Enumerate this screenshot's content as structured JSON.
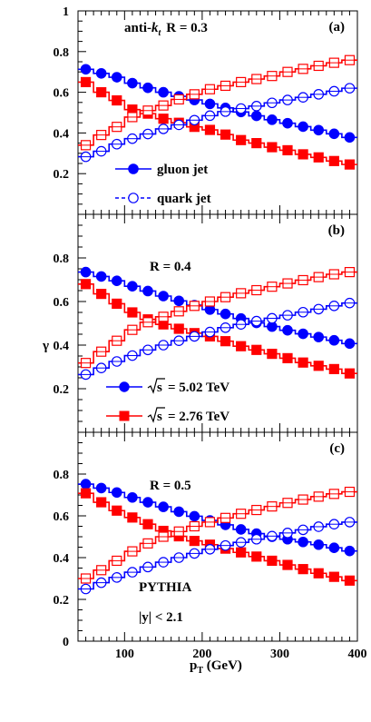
{
  "chart_data": [
    {
      "type": "line",
      "panel_label": "(a)",
      "annotation": "R = 0.3",
      "annotation_prefix": "anti-",
      "annotation_k": "k",
      "annotation_sub": "t",
      "ylim": [
        0,
        1
      ],
      "yticks": [
        "0.2",
        "0.4",
        "0.6",
        "0.8",
        "1"
      ],
      "legend": [
        {
          "label": "gluon jet",
          "marker": "filled-circle"
        },
        {
          "label": "quark jet",
          "marker": "open-circle"
        }
      ],
      "series": [
        {
          "energy": "5.02 TeV",
          "jet": "gluon",
          "color": "#0000ff",
          "filled": true,
          "shape": "circle",
          "x": [
            50,
            70,
            90,
            110,
            130,
            150,
            170,
            190,
            210,
            230,
            250,
            270,
            290,
            310,
            330,
            350,
            370,
            390
          ],
          "values": [
            0.713,
            0.693,
            0.674,
            0.645,
            0.622,
            0.6,
            0.58,
            0.562,
            0.543,
            0.523,
            0.503,
            0.484,
            0.465,
            0.448,
            0.431,
            0.414,
            0.396,
            0.378
          ]
        },
        {
          "energy": "2.76 TeV",
          "jet": "gluon",
          "color": "#ff0000",
          "filled": true,
          "shape": "square",
          "x": [
            50,
            70,
            90,
            110,
            130,
            150,
            170,
            190,
            210,
            230,
            250,
            270,
            290,
            310,
            330,
            350,
            370,
            390
          ],
          "values": [
            0.65,
            0.6,
            0.56,
            0.515,
            0.495,
            0.47,
            0.45,
            0.43,
            0.415,
            0.392,
            0.365,
            0.35,
            0.33,
            0.315,
            0.295,
            0.28,
            0.262,
            0.245
          ]
        },
        {
          "energy": "5.02 TeV",
          "jet": "quark",
          "color": "#0000ff",
          "filled": false,
          "shape": "circle",
          "x": [
            50,
            70,
            90,
            110,
            130,
            150,
            170,
            190,
            210,
            230,
            250,
            270,
            290,
            310,
            330,
            350,
            370,
            390
          ],
          "values": [
            0.283,
            0.31,
            0.345,
            0.372,
            0.395,
            0.42,
            0.44,
            0.463,
            0.485,
            0.505,
            0.52,
            0.532,
            0.548,
            0.562,
            0.575,
            0.59,
            0.605,
            0.62
          ]
        },
        {
          "energy": "2.76 TeV",
          "jet": "quark",
          "color": "#ff0000",
          "filled": false,
          "shape": "square",
          "x": [
            50,
            70,
            90,
            110,
            130,
            150,
            170,
            190,
            210,
            230,
            250,
            270,
            290,
            310,
            330,
            350,
            370,
            390
          ],
          "values": [
            0.34,
            0.39,
            0.43,
            0.478,
            0.51,
            0.535,
            0.565,
            0.59,
            0.615,
            0.632,
            0.65,
            0.665,
            0.68,
            0.7,
            0.715,
            0.73,
            0.745,
            0.758
          ]
        }
      ]
    },
    {
      "type": "line",
      "panel_label": "(b)",
      "annotation": "R = 0.4",
      "ylim": [
        0,
        1
      ],
      "yticks": [
        "0.2",
        "0.4",
        "0.6",
        "0.8"
      ],
      "ylabel": "γ",
      "legend": [
        {
          "label": "= 5.02 TeV",
          "root_label": "s",
          "marker": "blue-filled-circle"
        },
        {
          "label": "= 2.76 TeV",
          "root_label": "s",
          "marker": "red-filled-square"
        }
      ],
      "series": [
        {
          "energy": "5.02 TeV",
          "jet": "gluon",
          "color": "#0000ff",
          "filled": true,
          "shape": "circle",
          "x": [
            50,
            70,
            90,
            110,
            130,
            150,
            170,
            190,
            210,
            230,
            250,
            270,
            290,
            310,
            330,
            350,
            370,
            390
          ],
          "values": [
            0.735,
            0.715,
            0.695,
            0.67,
            0.648,
            0.625,
            0.603,
            0.583,
            0.563,
            0.543,
            0.522,
            0.502,
            0.485,
            0.468,
            0.452,
            0.437,
            0.422,
            0.407
          ]
        },
        {
          "energy": "2.76 TeV",
          "jet": "gluon",
          "color": "#ff0000",
          "filled": true,
          "shape": "square",
          "x": [
            50,
            70,
            90,
            110,
            130,
            150,
            170,
            190,
            210,
            230,
            250,
            270,
            290,
            310,
            330,
            350,
            370,
            390
          ],
          "values": [
            0.68,
            0.635,
            0.59,
            0.55,
            0.518,
            0.495,
            0.475,
            0.455,
            0.44,
            0.418,
            0.395,
            0.378,
            0.36,
            0.34,
            0.32,
            0.305,
            0.29,
            0.27
          ]
        },
        {
          "energy": "5.02 TeV",
          "jet": "quark",
          "color": "#0000ff",
          "filled": false,
          "shape": "circle",
          "x": [
            50,
            70,
            90,
            110,
            130,
            150,
            170,
            190,
            210,
            230,
            250,
            270,
            290,
            310,
            330,
            350,
            370,
            390
          ],
          "values": [
            0.265,
            0.295,
            0.325,
            0.352,
            0.378,
            0.4,
            0.42,
            0.44,
            0.46,
            0.48,
            0.495,
            0.51,
            0.523,
            0.537,
            0.551,
            0.565,
            0.58,
            0.593
          ]
        },
        {
          "energy": "2.76 TeV",
          "jet": "quark",
          "color": "#ff0000",
          "filled": false,
          "shape": "square",
          "x": [
            50,
            70,
            90,
            110,
            130,
            150,
            170,
            190,
            210,
            230,
            250,
            270,
            290,
            310,
            330,
            350,
            370,
            390
          ],
          "values": [
            0.318,
            0.37,
            0.42,
            0.47,
            0.505,
            0.53,
            0.555,
            0.58,
            0.6,
            0.62,
            0.638,
            0.652,
            0.668,
            0.683,
            0.698,
            0.712,
            0.725,
            0.735
          ]
        }
      ]
    },
    {
      "type": "line",
      "panel_label": "(c)",
      "annotation": "R = 0.5",
      "annotation_2": "PYTHIA",
      "annotation_3": "|y| < 2.1",
      "xlabel": "p",
      "xlabel_sub": "T",
      "xlabel_unit": " (GeV)",
      "xlim": [
        40,
        400
      ],
      "xticks": [
        "100",
        "200",
        "300",
        "400"
      ],
      "ylim": [
        0,
        1
      ],
      "yticks": [
        "0",
        "0.2",
        "0.4",
        "0.6",
        "0.8"
      ],
      "series": [
        {
          "energy": "5.02 TeV",
          "jet": "gluon",
          "color": "#0000ff",
          "filled": true,
          "shape": "circle",
          "x": [
            50,
            70,
            90,
            110,
            130,
            150,
            170,
            190,
            210,
            230,
            250,
            270,
            290,
            310,
            330,
            350,
            370,
            390
          ],
          "values": [
            0.752,
            0.733,
            0.712,
            0.688,
            0.665,
            0.643,
            0.62,
            0.598,
            0.578,
            0.557,
            0.535,
            0.515,
            0.5,
            0.488,
            0.475,
            0.462,
            0.447,
            0.432
          ]
        },
        {
          "energy": "2.76 TeV",
          "jet": "gluon",
          "color": "#ff0000",
          "filled": true,
          "shape": "square",
          "x": [
            50,
            70,
            90,
            110,
            130,
            150,
            170,
            190,
            210,
            230,
            250,
            270,
            290,
            310,
            330,
            350,
            370,
            390
          ],
          "values": [
            0.708,
            0.665,
            0.625,
            0.592,
            0.56,
            0.528,
            0.502,
            0.48,
            0.462,
            0.443,
            0.425,
            0.405,
            0.385,
            0.365,
            0.345,
            0.325,
            0.308,
            0.29
          ]
        },
        {
          "energy": "5.02 TeV",
          "jet": "quark",
          "color": "#0000ff",
          "filled": false,
          "shape": "circle",
          "x": [
            50,
            70,
            90,
            110,
            130,
            150,
            170,
            190,
            210,
            230,
            250,
            270,
            290,
            310,
            330,
            350,
            370,
            390
          ],
          "values": [
            0.25,
            0.28,
            0.305,
            0.33,
            0.355,
            0.378,
            0.4,
            0.42,
            0.44,
            0.458,
            0.473,
            0.488,
            0.503,
            0.518,
            0.533,
            0.548,
            0.56,
            0.57
          ]
        },
        {
          "energy": "2.76 TeV",
          "jet": "quark",
          "color": "#ff0000",
          "filled": false,
          "shape": "square",
          "x": [
            50,
            70,
            90,
            110,
            130,
            150,
            170,
            190,
            210,
            230,
            250,
            270,
            290,
            310,
            330,
            350,
            370,
            390
          ],
          "values": [
            0.3,
            0.34,
            0.385,
            0.43,
            0.468,
            0.5,
            0.525,
            0.55,
            0.57,
            0.59,
            0.61,
            0.628,
            0.645,
            0.662,
            0.678,
            0.692,
            0.705,
            0.715
          ]
        }
      ]
    }
  ]
}
